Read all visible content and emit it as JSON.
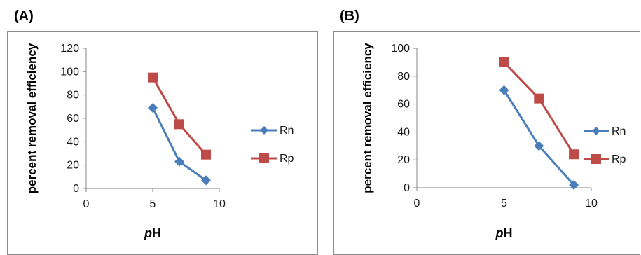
{
  "chart_data": [
    {
      "panel": "(A)",
      "type": "line",
      "xlabel_prefix": "p",
      "xlabel_suffix": "H",
      "ylabel": "percent removal efficiency",
      "xlim": [
        0,
        10
      ],
      "ylim": [
        0,
        120
      ],
      "xticks": [
        0,
        5,
        10
      ],
      "yticks": [
        0,
        20,
        40,
        60,
        80,
        100,
        120
      ],
      "legend_position": "right",
      "series": [
        {
          "name": "Rn",
          "color": "#4a7ebb",
          "marker": "diamond",
          "x": [
            5,
            7,
            9
          ],
          "y": [
            69,
            23,
            7
          ]
        },
        {
          "name": "Rp",
          "color": "#be4b48",
          "marker": "square",
          "x": [
            5,
            7,
            9
          ],
          "y": [
            95,
            55,
            29
          ]
        }
      ]
    },
    {
      "panel": "(B)",
      "type": "line",
      "xlabel_prefix": "p",
      "xlabel_suffix": "H",
      "ylabel": "percent removal efficiency",
      "xlim": [
        0,
        10
      ],
      "ylim": [
        0,
        100
      ],
      "xticks": [
        0,
        5,
        10
      ],
      "yticks": [
        0,
        20,
        40,
        60,
        80,
        100
      ],
      "legend_position": "right",
      "series": [
        {
          "name": "Rn",
          "color": "#4a7ebb",
          "marker": "diamond",
          "x": [
            5,
            7,
            9
          ],
          "y": [
            70,
            30,
            2
          ]
        },
        {
          "name": "Rp",
          "color": "#be4b48",
          "marker": "square",
          "x": [
            5,
            7,
            9
          ],
          "y": [
            90,
            64,
            24
          ]
        }
      ]
    }
  ]
}
